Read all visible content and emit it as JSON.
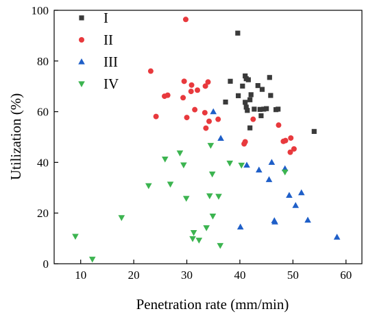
{
  "chart_data": {
    "type": "scatter",
    "xlabel": "Penetration rate (mm/min)",
    "ylabel": "Utilization (%)",
    "xlim": [
      5,
      63
    ],
    "ylim": [
      0,
      100
    ],
    "xticks": [
      10,
      20,
      30,
      40,
      50,
      60
    ],
    "yticks": [
      0,
      20,
      40,
      60,
      80,
      100
    ],
    "grid": false,
    "legend_position": "top-left",
    "series": [
      {
        "name": "I",
        "marker": "square",
        "color": "#3a3a3a",
        "points": [
          [
            39.6,
            91.0
          ],
          [
            37.3,
            63.8
          ],
          [
            38.2,
            72.0
          ],
          [
            39.7,
            66.3
          ],
          [
            40.5,
            70.1
          ],
          [
            41.0,
            74.1
          ],
          [
            41.2,
            73.0
          ],
          [
            41.6,
            72.6
          ],
          [
            41.0,
            63.7
          ],
          [
            41.2,
            61.8
          ],
          [
            41.4,
            60.5
          ],
          [
            41.9,
            64.7
          ],
          [
            42.1,
            66.7
          ],
          [
            41.9,
            53.6
          ],
          [
            42.7,
            61.0
          ],
          [
            43.4,
            70.3
          ],
          [
            43.8,
            60.9
          ],
          [
            44.2,
            68.8
          ],
          [
            44.5,
            61.0
          ],
          [
            45.0,
            61.2
          ],
          [
            45.6,
            73.5
          ],
          [
            45.8,
            66.4
          ],
          [
            44.0,
            58.4
          ],
          [
            46.8,
            60.8
          ],
          [
            47.2,
            61.0
          ],
          [
            54.0,
            52.2
          ]
        ]
      },
      {
        "name": "II",
        "marker": "circle",
        "color": "#e8393d",
        "points": [
          [
            29.8,
            96.4
          ],
          [
            23.2,
            76.0
          ],
          [
            24.2,
            58.1
          ],
          [
            25.8,
            66.1
          ],
          [
            26.4,
            66.5
          ],
          [
            29.3,
            65.5
          ],
          [
            29.5,
            72.0
          ],
          [
            30.0,
            57.7
          ],
          [
            30.9,
            70.5
          ],
          [
            30.8,
            68.0
          ],
          [
            31.5,
            60.8
          ],
          [
            32.0,
            68.5
          ],
          [
            33.4,
            59.6
          ],
          [
            33.6,
            53.5
          ],
          [
            33.5,
            70.1
          ],
          [
            34.0,
            71.7
          ],
          [
            34.2,
            56.2
          ],
          [
            35.9,
            57.0
          ],
          [
            40.8,
            47.3
          ],
          [
            41.0,
            48.1
          ],
          [
            42.5,
            57.0
          ],
          [
            47.3,
            54.7
          ],
          [
            48.2,
            48.3
          ],
          [
            48.6,
            48.6
          ],
          [
            49.5,
            44.0
          ],
          [
            49.6,
            49.6
          ],
          [
            50.2,
            45.3
          ]
        ]
      },
      {
        "name": "III",
        "marker": "triangle-up",
        "color": "#1f5fc8",
        "points": [
          [
            35.0,
            60.0
          ],
          [
            36.4,
            49.5
          ],
          [
            40.1,
            14.5
          ],
          [
            41.3,
            38.9
          ],
          [
            43.6,
            37.0
          ],
          [
            45.5,
            33.2
          ],
          [
            46.0,
            40.0
          ],
          [
            46.5,
            17.0
          ],
          [
            46.6,
            16.5
          ],
          [
            48.5,
            37.5
          ],
          [
            49.3,
            27.0
          ],
          [
            50.5,
            23.0
          ],
          [
            51.6,
            28.0
          ],
          [
            52.8,
            17.2
          ],
          [
            58.3,
            10.5
          ]
        ]
      },
      {
        "name": "IV",
        "marker": "triangle-down",
        "color": "#3cb450",
        "points": [
          [
            9.0,
            10.8
          ],
          [
            12.2,
            1.8
          ],
          [
            17.7,
            18.2
          ],
          [
            22.8,
            30.8
          ],
          [
            25.9,
            41.3
          ],
          [
            26.9,
            31.4
          ],
          [
            28.7,
            43.7
          ],
          [
            29.4,
            39.0
          ],
          [
            29.9,
            25.8
          ],
          [
            31.1,
            9.9
          ],
          [
            31.3,
            12.3
          ],
          [
            32.3,
            9.3
          ],
          [
            33.7,
            14.2
          ],
          [
            34.3,
            26.8
          ],
          [
            34.5,
            46.7
          ],
          [
            34.8,
            35.4
          ],
          [
            34.9,
            18.8
          ],
          [
            36.0,
            26.6
          ],
          [
            36.3,
            7.2
          ],
          [
            38.1,
            39.7
          ],
          [
            40.3,
            38.9
          ],
          [
            48.5,
            36.2
          ]
        ]
      }
    ]
  }
}
